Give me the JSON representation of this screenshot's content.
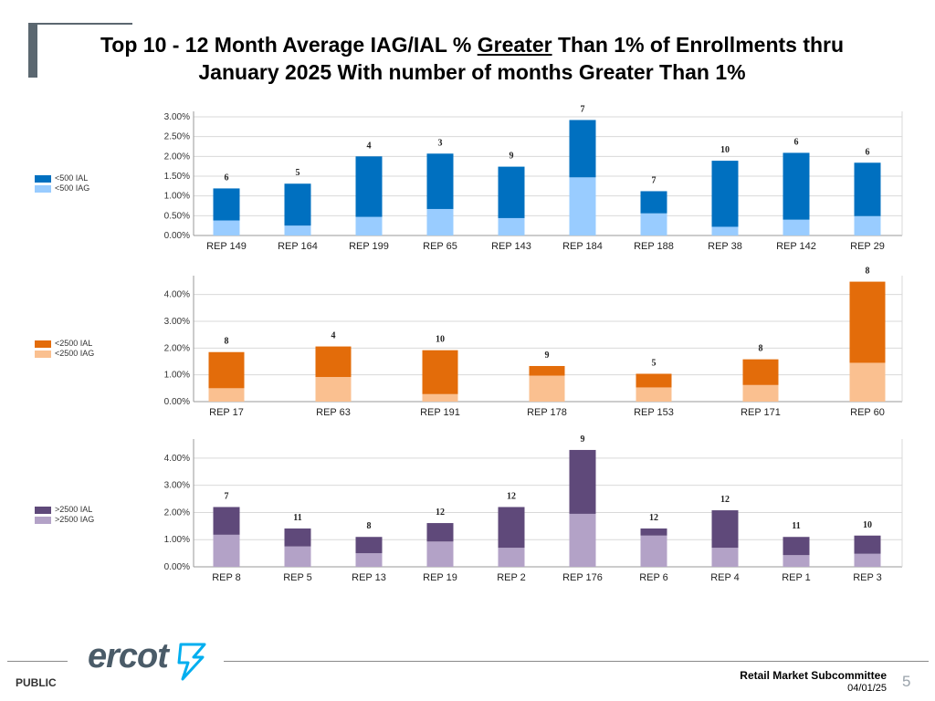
{
  "title": {
    "line1_pre": "Top 10 - 12 Month Average IAG/IAL % ",
    "line1_underlined": "Greater",
    "line1_post": " Than 1% of Enrollments thru",
    "line2": "January 2025 With number of months Greater Than 1%"
  },
  "chart_data": [
    {
      "type": "bar",
      "stacked": true,
      "categories": [
        "REP 149",
        "REP 164",
        "REP 199",
        "REP 65",
        "REP 143",
        "REP 184",
        "REP 188",
        "REP 38",
        "REP 142",
        "REP 29"
      ],
      "series": [
        {
          "name": "<500 IAG",
          "color": "#99ccff",
          "values": [
            0.38,
            0.25,
            0.47,
            0.67,
            0.44,
            1.47,
            0.56,
            0.22,
            0.4,
            0.49
          ]
        },
        {
          "name": "<500 IAL",
          "color": "#0070c0",
          "values": [
            0.81,
            1.06,
            1.53,
            1.4,
            1.3,
            1.45,
            0.56,
            1.67,
            1.69,
            1.35
          ]
        }
      ],
      "months_labels": [
        "6",
        "5",
        "4",
        "3",
        "9",
        "7",
        "7",
        "10",
        "6",
        "6"
      ],
      "ylim": [
        0,
        3.0
      ],
      "yticks": [
        0,
        0.5,
        1.0,
        1.5,
        2.0,
        2.5,
        3.0
      ],
      "ytick_labels": [
        "0.00%",
        "0.50%",
        "1.00%",
        "1.50%",
        "2.00%",
        "2.50%",
        "3.00%"
      ],
      "legend": [
        "<500 IAL",
        "<500 IAG"
      ]
    },
    {
      "type": "bar",
      "stacked": true,
      "categories": [
        "REP 17",
        "REP 63",
        "REP 191",
        "REP 178",
        "REP 153",
        "REP 171",
        "REP 60"
      ],
      "series": [
        {
          "name": "<2500 IAG",
          "color": "#fac090",
          "values": [
            0.5,
            0.92,
            0.28,
            0.97,
            0.53,
            0.62,
            1.45
          ]
        },
        {
          "name": "<2500 IAL",
          "color": "#e36c0a",
          "values": [
            1.35,
            1.14,
            1.64,
            0.36,
            0.51,
            0.96,
            3.03
          ]
        }
      ],
      "months_labels": [
        "8",
        "4",
        "10",
        "9",
        "5",
        "8",
        "8"
      ],
      "ylim": [
        0,
        4.5
      ],
      "yticks": [
        0,
        1,
        2,
        3,
        4
      ],
      "ytick_labels": [
        "0.00%",
        "1.00%",
        "2.00%",
        "3.00%",
        "4.00%"
      ],
      "legend": [
        "<2500 IAL",
        "<2500 IAG"
      ]
    },
    {
      "type": "bar",
      "stacked": true,
      "categories": [
        "REP 8",
        "REP 5",
        "REP 13",
        "REP 19",
        "REP 2",
        "REP 176",
        "REP 6",
        "REP 4",
        "REP 1",
        "REP 3"
      ],
      "series": [
        {
          "name": ">2500 IAG",
          "color": "#b3a2c7",
          "values": [
            1.18,
            0.75,
            0.5,
            0.93,
            0.7,
            1.95,
            1.15,
            0.7,
            0.43,
            0.48
          ]
        },
        {
          "name": ">2500 IAL",
          "color": "#5f497a",
          "values": [
            1.02,
            0.66,
            0.6,
            0.68,
            1.5,
            2.35,
            0.26,
            1.38,
            0.67,
            0.67
          ]
        }
      ],
      "months_labels": [
        "7",
        "11",
        "8",
        "12",
        "12",
        "9",
        "12",
        "12",
        "11",
        "10"
      ],
      "ylim": [
        0,
        4.5
      ],
      "yticks": [
        0,
        1,
        2,
        3,
        4
      ],
      "ytick_labels": [
        "0.00%",
        "1.00%",
        "2.00%",
        "3.00%",
        "4.00%"
      ],
      "legend": [
        ">2500 IAL",
        ">2500 IAG"
      ]
    }
  ],
  "footer": {
    "classification": "PUBLIC",
    "logo_text": "ercot",
    "committee": "Retail Market Subcommittee",
    "date": "04/01/25",
    "page_number": "5"
  }
}
